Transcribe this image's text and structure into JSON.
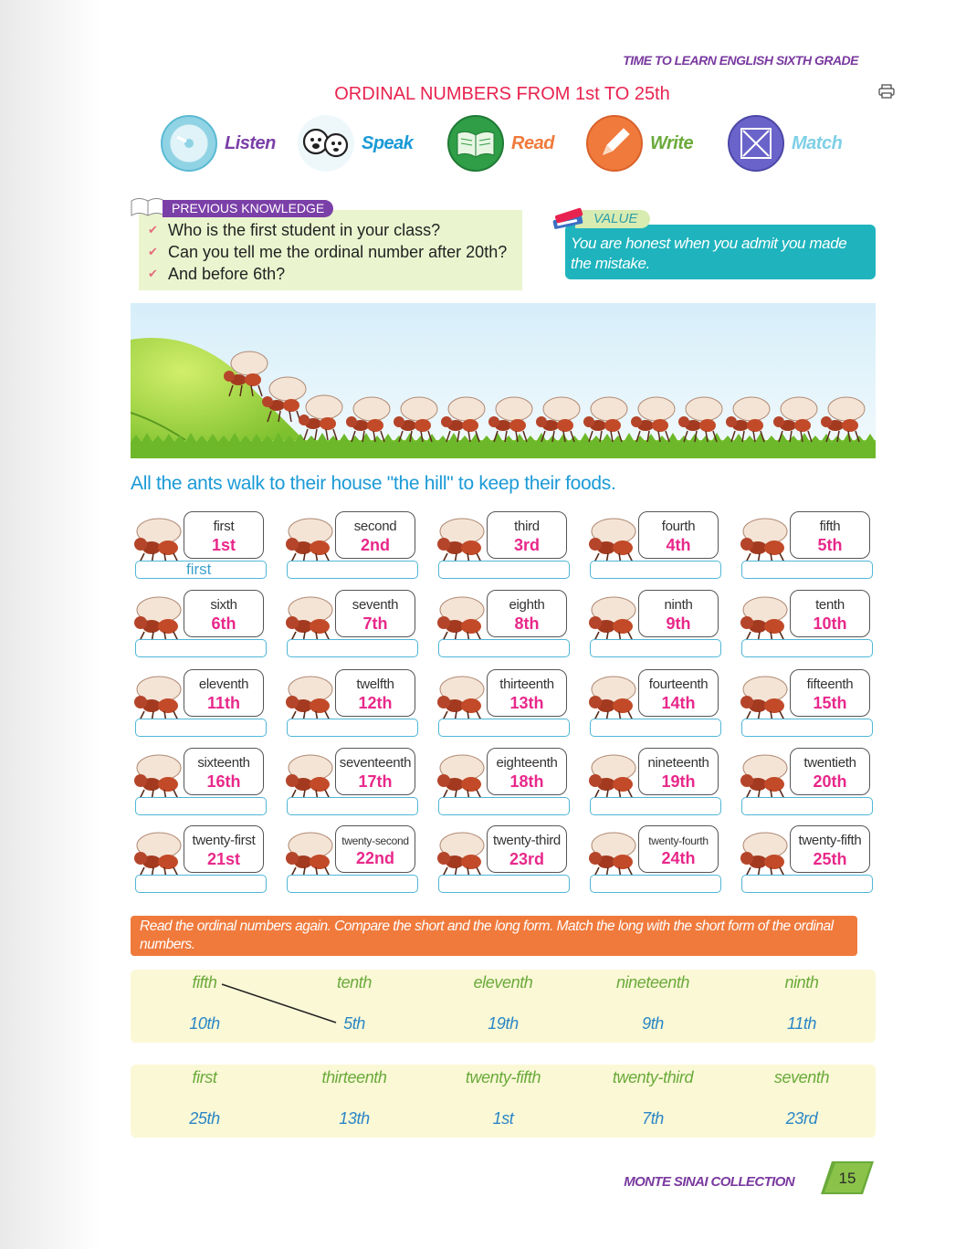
{
  "header": {
    "book_title": "TIME TO LEARN ENGLISH SIXTH GRADE",
    "lesson_title": "ORDINAL NUMBERS FROM 1st TO 25th"
  },
  "skills": [
    {
      "label": "Listen",
      "color": "#7b3fa8",
      "icon": "cd-icon"
    },
    {
      "label": "Speak",
      "color": "#1a9ad6",
      "icon": "speech-faces-icon"
    },
    {
      "label": "Read",
      "color": "#f07a3c",
      "icon": "open-book-icon"
    },
    {
      "label": "Write",
      "color": "#6aaa3a",
      "icon": "pencil-icon"
    },
    {
      "label": "Match",
      "color": "#7ed0e6",
      "icon": "match-arrows-icon"
    }
  ],
  "previous_knowledge": {
    "tag": "PREVIOUS KNOWLEDGE",
    "items": [
      "Who is the first student in your class?",
      "Can you tell me the ordinal number after 20th?",
      "And before 6th?"
    ]
  },
  "value": {
    "tag": "VALUE",
    "text": "You are honest when you admit you made the mistake."
  },
  "caption": "All the ants walk to their house \"the hill\" to keep their foods.",
  "ordinals": [
    {
      "word": "first",
      "num": "1st",
      "answer": "first"
    },
    {
      "word": "second",
      "num": "2nd",
      "answer": ""
    },
    {
      "word": "third",
      "num": "3rd",
      "answer": ""
    },
    {
      "word": "fourth",
      "num": "4th",
      "answer": ""
    },
    {
      "word": "fifth",
      "num": "5th",
      "answer": ""
    },
    {
      "word": "sixth",
      "num": "6th",
      "answer": ""
    },
    {
      "word": "seventh",
      "num": "7th",
      "answer": ""
    },
    {
      "word": "eighth",
      "num": "8th",
      "answer": ""
    },
    {
      "word": "ninth",
      "num": "9th",
      "answer": ""
    },
    {
      "word": "tenth",
      "num": "10th",
      "answer": ""
    },
    {
      "word": "eleventh",
      "num": "11th",
      "answer": ""
    },
    {
      "word": "twelfth",
      "num": "12th",
      "answer": ""
    },
    {
      "word": "thirteenth",
      "num": "13th",
      "answer": ""
    },
    {
      "word": "fourteenth",
      "num": "14th",
      "answer": ""
    },
    {
      "word": "fifteenth",
      "num": "15th",
      "answer": ""
    },
    {
      "word": "sixteenth",
      "num": "16th",
      "answer": ""
    },
    {
      "word": "seventeenth",
      "num": "17th",
      "answer": ""
    },
    {
      "word": "eighteenth",
      "num": "18th",
      "answer": ""
    },
    {
      "word": "nineteenth",
      "num": "19th",
      "answer": ""
    },
    {
      "word": "twentieth",
      "num": "20th",
      "answer": ""
    },
    {
      "word": "twenty-first",
      "num": "21st",
      "answer": ""
    },
    {
      "word": "twenty-second",
      "num": "22nd",
      "answer": ""
    },
    {
      "word": "twenty-third",
      "num": "23rd",
      "answer": ""
    },
    {
      "word": "twenty-fourth",
      "num": "24th",
      "answer": ""
    },
    {
      "word": "twenty-fifth",
      "num": "25th",
      "answer": ""
    }
  ],
  "instruction": "Read the ordinal numbers again. Compare the short and the long form. Match the long with the short form of the ordinal numbers.",
  "match_sets": [
    {
      "long": [
        "fifth",
        "tenth",
        "eleventh",
        "nineteenth",
        "ninth"
      ],
      "short": [
        "10th",
        "5th",
        "19th",
        "9th",
        "11th"
      ]
    },
    {
      "long": [
        "first",
        "thirteenth",
        "twenty-fifth",
        "twenty-third",
        "seventh"
      ],
      "short": [
        "25th",
        "13th",
        "1st",
        "7th",
        "23rd"
      ]
    }
  ],
  "footer": {
    "brand": "MONTE SINAI COLLECTION",
    "page": "15"
  }
}
